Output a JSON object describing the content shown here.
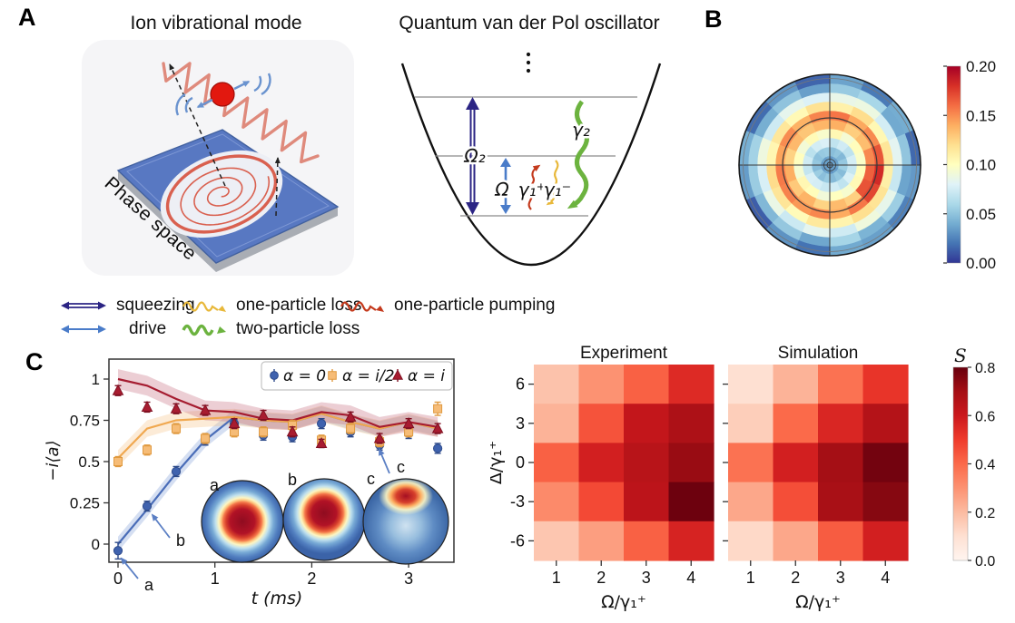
{
  "panel_a": {
    "label": "A",
    "title_left": "Ion vibrational mode",
    "title_right": "Quantum van der Pol oscillator",
    "phase_space": "Phase space",
    "diagram": {
      "omega2": "Ω₂",
      "omega": "Ω",
      "gamma1p": "γ₁⁺",
      "gamma1m": "γ₁⁻",
      "gamma2": "γ₂"
    }
  },
  "panel_b": {
    "label": "B"
  },
  "panel_c": {
    "label": "C"
  },
  "legend": {
    "items": [
      {
        "name": "squeezing",
        "label": "squeezing"
      },
      {
        "name": "one-particle-loss",
        "label": "one-particle loss"
      },
      {
        "name": "one-particle-pumping",
        "label": "one-particle pumping"
      },
      {
        "name": "drive",
        "label": "drive"
      },
      {
        "name": "two-particle-loss",
        "label": "two-particle loss"
      }
    ]
  },
  "colors": {
    "squeezing_arrow": "#2b2484",
    "drive_arrow": "#4a7cc9",
    "one_particle_loss": "#e8b83a",
    "two_particle_loss": "#6cb33f",
    "one_particle_pumping": "#c43a1d",
    "series_blue": "#3f62ae",
    "series_orange": "#f6bc77",
    "series_red": "#a81c30",
    "plate_blue": "#5878c2",
    "ion_red": "#e2180f",
    "annotation_blue": "#5b7fc4"
  },
  "colormaps": {
    "rdylbu_r": [
      "#313695",
      "#4575b4",
      "#74add1",
      "#abd9e9",
      "#e0f3f8",
      "#ffffbf",
      "#fee090",
      "#fdae61",
      "#f46d43",
      "#d73027",
      "#a50026"
    ],
    "reds": [
      "#fff5f0",
      "#fee0d2",
      "#fcbba1",
      "#fc9272",
      "#fb6a4a",
      "#ef3b2c",
      "#cb181d",
      "#a50f15",
      "#67000d"
    ]
  },
  "chart_data": [
    {
      "id": "wigner_polar",
      "type": "polar_heatmap",
      "vmin": 0.0,
      "vmax": 0.2,
      "rings": [
        0.035,
        0.05,
        0.072,
        0.098,
        0.132,
        0.148,
        0.112,
        0.08,
        0.047,
        0.027
      ],
      "sectors": 16,
      "sector_noise": [
        0.01,
        -0.006,
        0.003,
        -0.012,
        0.006,
        0.012,
        -0.008,
        0.004,
        -0.01,
        0.008,
        -0.004,
        0.011,
        -0.009,
        0.005,
        -0.002,
        0.007
      ],
      "ring_noise_amp": [
        0.3,
        0.4,
        0.5,
        0.6,
        0.7,
        0.8,
        0.8,
        0.8,
        1.0,
        1.2
      ],
      "hotspot": {
        "rings": [
          4,
          5
        ],
        "sectors": [
          15,
          0,
          1
        ],
        "boost": 0.028
      },
      "inner_circle_fraction": 0.52,
      "colorbar": {
        "ticks": [
          "0.20",
          "0.15",
          "0.10",
          "0.05",
          "0.00"
        ],
        "tick_values": [
          0.2,
          0.15,
          0.1,
          0.05,
          0.0
        ]
      }
    },
    {
      "id": "dynamics",
      "type": "line_scatter",
      "xlabel": "t (ms)",
      "ylabel": "−i⟨a⟩",
      "x": [
        0,
        0.3,
        0.6,
        0.9,
        1.2,
        1.5,
        1.8,
        2.1,
        2.4,
        2.7,
        3.0,
        3.3
      ],
      "xticks": [
        0,
        1,
        2,
        3
      ],
      "yticks": [
        1,
        0.75,
        0.5,
        0.25,
        0
      ],
      "ytick_labels": [
        "1",
        "0.75",
        "0.5",
        "0.25",
        "0"
      ],
      "series": [
        {
          "name": "α = 0",
          "marker": "circle",
          "points": [
            -0.04,
            0.23,
            0.44,
            0.63,
            0.73,
            0.66,
            0.65,
            0.73,
            0.68,
            0.6,
            0.67,
            0.58
          ],
          "errors": [
            0.05,
            0.03,
            0.03,
            0.03,
            0.025,
            0.03,
            0.03,
            0.03,
            0.03,
            0.03,
            0.03,
            0.03
          ],
          "line": [
            0.0,
            0.21,
            0.43,
            0.63,
            0.77,
            0.75,
            0.74,
            0.79,
            0.74,
            0.7,
            0.74,
            0.7
          ],
          "band_halfwidth": 0.045,
          "fill": "#3f62ae",
          "edge": "#2d4a8a",
          "line_color": "#4a6db8",
          "band_color": "#7b9bd6"
        },
        {
          "name": "α = i/2",
          "marker": "square",
          "points": [
            0.5,
            0.57,
            0.7,
            0.64,
            0.68,
            0.68,
            0.72,
            0.63,
            0.7,
            0.62,
            0.68,
            0.82
          ],
          "errors": [
            0.03,
            0.03,
            0.03,
            0.03,
            0.03,
            0.03,
            0.03,
            0.03,
            0.03,
            0.03,
            0.03,
            0.04
          ],
          "line": [
            0.52,
            0.7,
            0.75,
            0.76,
            0.77,
            0.75,
            0.74,
            0.79,
            0.74,
            0.7,
            0.74,
            0.7
          ],
          "band_halfwidth": 0.05,
          "fill": "#f6bc77",
          "edge": "#e09a40",
          "line_color": "#f0a850",
          "band_color": "#f6c083"
        },
        {
          "name": "α = i",
          "marker": "triangle",
          "points": [
            0.93,
            0.83,
            0.82,
            0.81,
            0.73,
            0.78,
            0.68,
            0.61,
            0.77,
            0.64,
            0.73,
            0.7
          ],
          "errors": [
            0.03,
            0.03,
            0.03,
            0.03,
            0.03,
            0.03,
            0.03,
            0.025,
            0.03,
            0.03,
            0.03,
            0.03
          ],
          "line": [
            1.0,
            0.96,
            0.88,
            0.81,
            0.8,
            0.76,
            0.75,
            0.8,
            0.78,
            0.71,
            0.74,
            0.71
          ],
          "band_halfwidth": 0.06,
          "fill": "#a81c30",
          "edge": "#801022",
          "line_color": "#a51c30",
          "band_color": "#c4687a"
        }
      ],
      "insets": [
        {
          "label": "a",
          "kind": "center_blob"
        },
        {
          "label": "b",
          "kind": "center_blob_up"
        },
        {
          "label": "c",
          "kind": "top_blob"
        }
      ],
      "annotations": [
        {
          "label": "a"
        },
        {
          "label": "b"
        },
        {
          "label": "c"
        }
      ]
    },
    {
      "id": "experiment",
      "type": "heatmap",
      "title": "Experiment",
      "xlabel": "Ω/γ₁⁺",
      "ylabel": "Δ/γ₁⁺",
      "x": [
        "1",
        "2",
        "3",
        "4"
      ],
      "y": [
        "6",
        "3",
        "0",
        "-3",
        "-6"
      ],
      "vmin": 0.0,
      "vmax": 0.8,
      "values": [
        [
          0.18,
          0.3,
          0.42,
          0.55
        ],
        [
          0.22,
          0.45,
          0.62,
          0.68
        ],
        [
          0.42,
          0.58,
          0.65,
          0.72
        ],
        [
          0.32,
          0.47,
          0.64,
          0.79
        ],
        [
          0.17,
          0.27,
          0.42,
          0.57
        ]
      ]
    },
    {
      "id": "simulation",
      "type": "heatmap",
      "title": "Simulation",
      "xlabel": "Ω/γ₁⁺",
      "ylabel": "",
      "x": [
        "1",
        "2",
        "3",
        "4"
      ],
      "y": [
        "6",
        "3",
        "0",
        "-3",
        "-6"
      ],
      "vmin": 0.0,
      "vmax": 0.8,
      "values": [
        [
          0.1,
          0.22,
          0.38,
          0.52
        ],
        [
          0.15,
          0.4,
          0.56,
          0.66
        ],
        [
          0.38,
          0.58,
          0.7,
          0.78
        ],
        [
          0.25,
          0.46,
          0.69,
          0.75
        ],
        [
          0.12,
          0.25,
          0.43,
          0.58
        ]
      ],
      "colorbar": {
        "label": "S",
        "ticks": [
          "0.8",
          "0.6",
          "0.4",
          "0.2",
          "0.0"
        ],
        "tick_values": [
          0.8,
          0.6,
          0.4,
          0.2,
          0.0
        ]
      }
    }
  ]
}
